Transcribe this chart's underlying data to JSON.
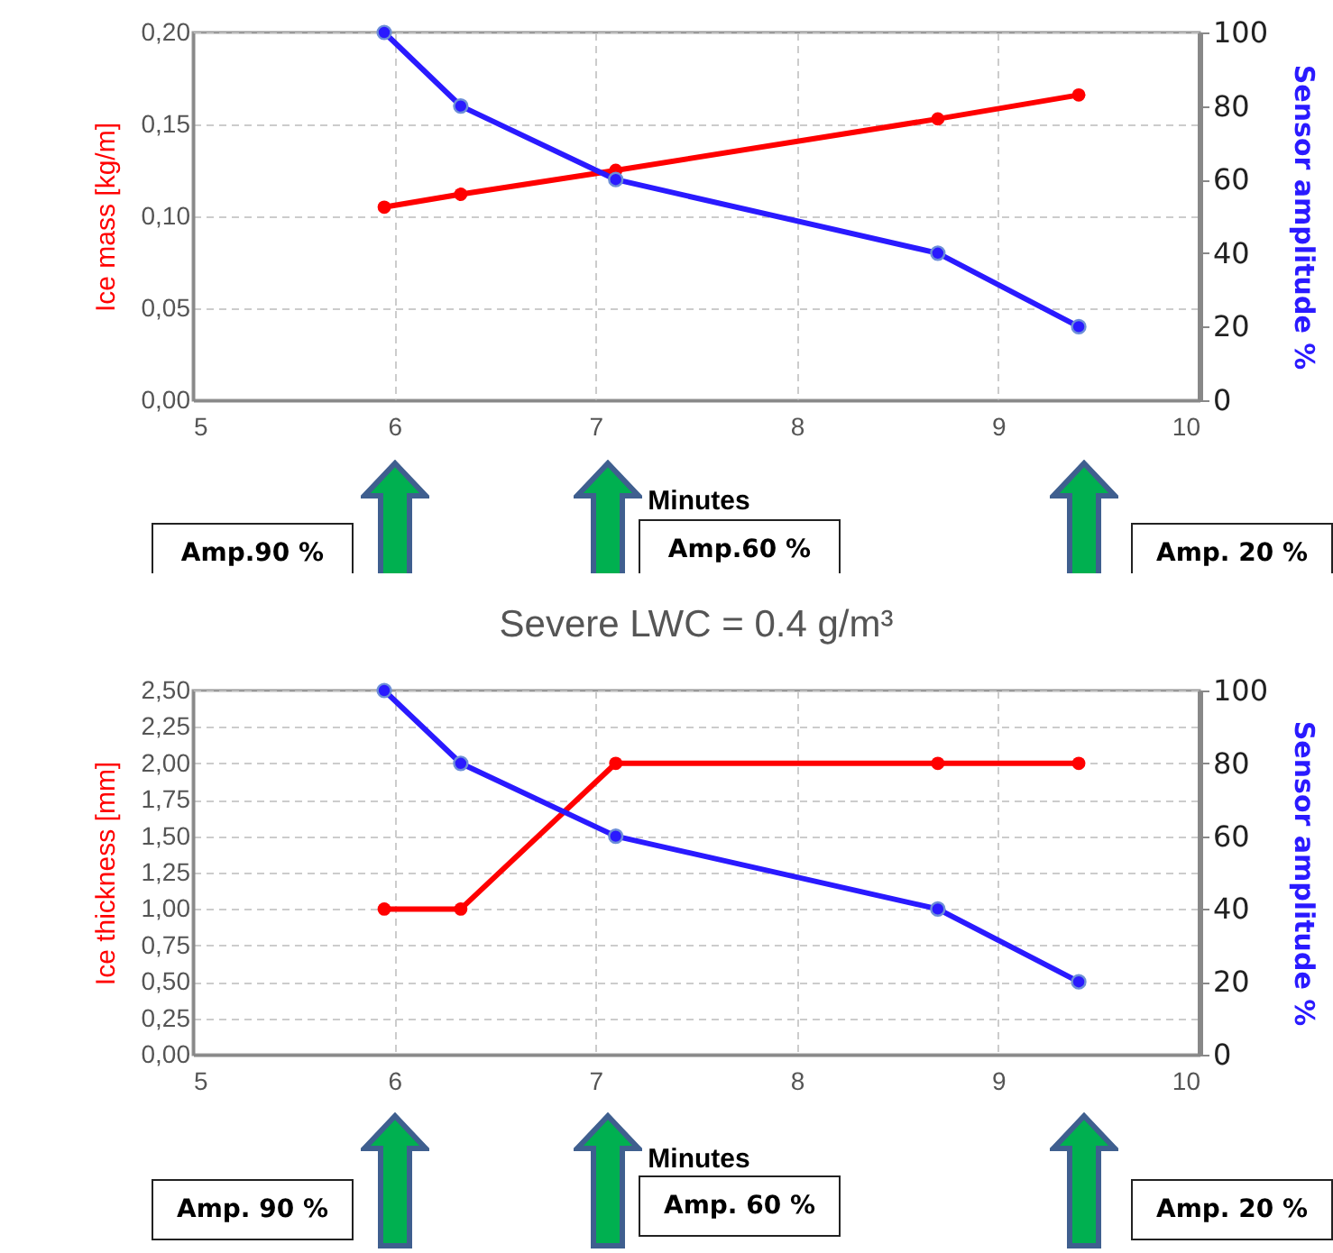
{
  "chart_data": [
    {
      "type": "line",
      "xlabel": "Minutes",
      "ylabel": "Ice mass [kg/m]",
      "y2label": "Sensor amplitude %",
      "x": [
        5.95,
        6.33,
        7.1,
        8.7,
        9.4
      ],
      "series": [
        {
          "name": null,
          "color": "#ff0000",
          "values": [
            0.105,
            0.112,
            0.125,
            0.153,
            0.166
          ]
        },
        {
          "name": null,
          "color": "#2a1aff",
          "axis": "y2",
          "values": [
            100,
            80,
            60,
            40,
            20
          ]
        }
      ],
      "xlim": [
        5,
        10
      ],
      "xticks": [
        5,
        6,
        7,
        8,
        9,
        10
      ],
      "ylim": [
        0,
        0.2
      ],
      "yticks": [
        {
          "value": 0,
          "label": "0,00"
        },
        {
          "value": 0.05,
          "label": "0,05"
        },
        {
          "value": 0.1,
          "label": "0,10"
        },
        {
          "value": 0.15,
          "label": "0,15"
        },
        {
          "value": 0.2,
          "label": "0,20"
        }
      ],
      "y2lim": [
        0,
        100
      ],
      "y2ticks": [
        0,
        20,
        40,
        60,
        80,
        100
      ],
      "grid": true,
      "marker": "circle",
      "line_style": "solid",
      "annotations": [
        "Amp.90 %",
        "Amp.60 %",
        "Amp. 20 %"
      ]
    },
    {
      "type": "line",
      "title": "Severe LWC = 0.4 g/m³",
      "xlabel": "Minutes",
      "ylabel": "Ice thickness [mm]",
      "y2label": "Sensor amplitude %",
      "x": [
        5.95,
        6.33,
        7.1,
        8.7,
        9.4
      ],
      "series": [
        {
          "name": null,
          "color": "#ff0000",
          "values": [
            1,
            1,
            2,
            2,
            2
          ]
        },
        {
          "name": null,
          "color": "#2a1aff",
          "axis": "y2",
          "values": [
            100,
            80,
            60,
            40,
            20
          ]
        }
      ],
      "xlim": [
        5,
        10
      ],
      "xticks": [
        5,
        6,
        7,
        8,
        9,
        10
      ],
      "ylim": [
        0,
        2.5
      ],
      "yticks": [
        {
          "value": 0,
          "label": "0,00"
        },
        {
          "value": 0.25,
          "label": "0,25"
        },
        {
          "value": 0.5,
          "label": "0,50"
        },
        {
          "value": 0.75,
          "label": "0,75"
        },
        {
          "value": 1,
          "label": "1,00"
        },
        {
          "value": 1.25,
          "label": "1,25"
        },
        {
          "value": 1.5,
          "label": "1,50"
        },
        {
          "value": 1.75,
          "label": "1,75"
        },
        {
          "value": 2,
          "label": "2,00"
        },
        {
          "value": 2.25,
          "label": "2,25"
        },
        {
          "value": 2.5,
          "label": "2,50"
        }
      ],
      "y2lim": [
        0,
        100
      ],
      "y2ticks": [
        0,
        20,
        40,
        60,
        80,
        100
      ],
      "grid": true,
      "marker": "circle",
      "line_style": "solid",
      "annotations": [
        "Amp. 90 %",
        "Amp. 60 %",
        "Amp. 20 %"
      ]
    }
  ]
}
